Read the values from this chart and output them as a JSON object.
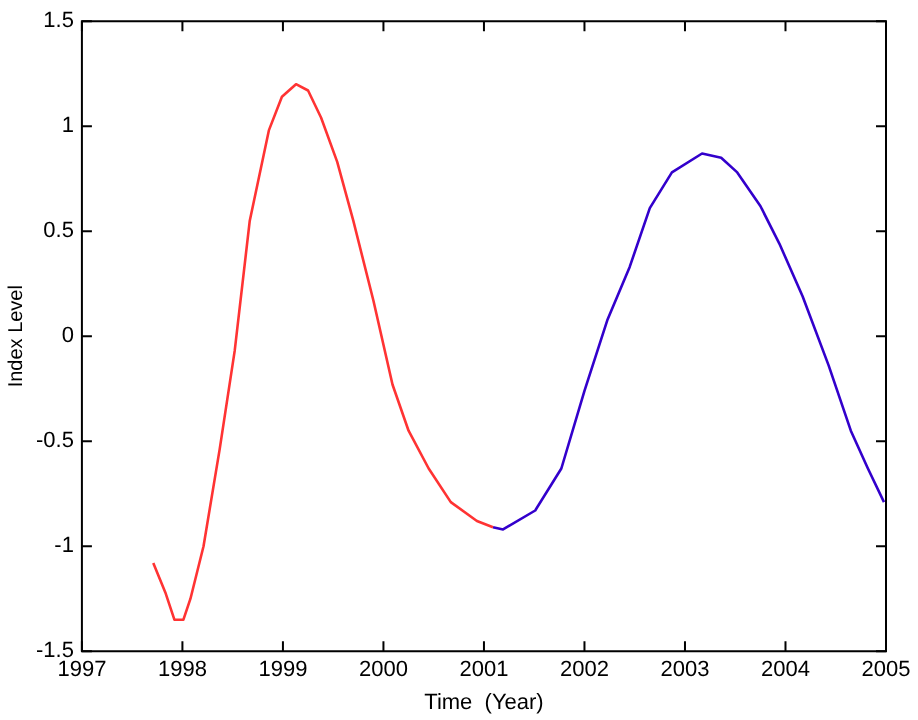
{
  "chart_data": {
    "type": "line",
    "xlabel": "Time  (Year)",
    "ylabel": "Index Level",
    "xlim": [
      1997,
      2005
    ],
    "xticks": [
      1997,
      1998,
      1999,
      2000,
      2001,
      2002,
      2003,
      2004,
      2005
    ],
    "ylim": [
      -1.5,
      1.5
    ],
    "yticks": [
      -1.5,
      -1,
      -0.5,
      0,
      0.5,
      1,
      1.5
    ],
    "grid": false,
    "legend": false,
    "marker": "none",
    "line_style": "solid",
    "series": [
      {
        "color": "#ff3333",
        "x": [
          1997.71,
          1997.83,
          1997.92,
          1998.01,
          1998.08,
          1998.21,
          1998.37,
          1998.52,
          1998.67,
          1998.86,
          1998.99,
          1999.13,
          1999.25,
          1999.38,
          1999.54,
          1999.7,
          1999.9,
          2000.09,
          2000.25,
          2000.45,
          2000.67,
          2000.93,
          2001.09
        ],
        "values": [
          -1.08,
          -1.22,
          -1.35,
          -1.35,
          -1.25,
          -1.0,
          -0.54,
          -0.07,
          0.55,
          0.98,
          1.14,
          1.2,
          1.17,
          1.04,
          0.83,
          0.55,
          0.17,
          -0.23,
          -0.45,
          -0.63,
          -0.79,
          -0.88,
          -0.91
        ]
      },
      {
        "color": "#3300cc",
        "x": [
          2001.09,
          2001.19,
          2001.51,
          2001.77,
          2002.0,
          2002.23,
          2002.45,
          2002.65,
          2002.87,
          2003.17,
          2003.36,
          2003.52,
          2003.75,
          2003.94,
          2004.17,
          2004.43,
          2004.65,
          2004.82,
          2004.98
        ],
        "values": [
          -0.91,
          -0.92,
          -0.83,
          -0.63,
          -0.26,
          0.08,
          0.33,
          0.61,
          0.78,
          0.87,
          0.85,
          0.78,
          0.62,
          0.44,
          0.19,
          -0.14,
          -0.45,
          -0.63,
          -0.79
        ]
      }
    ]
  }
}
